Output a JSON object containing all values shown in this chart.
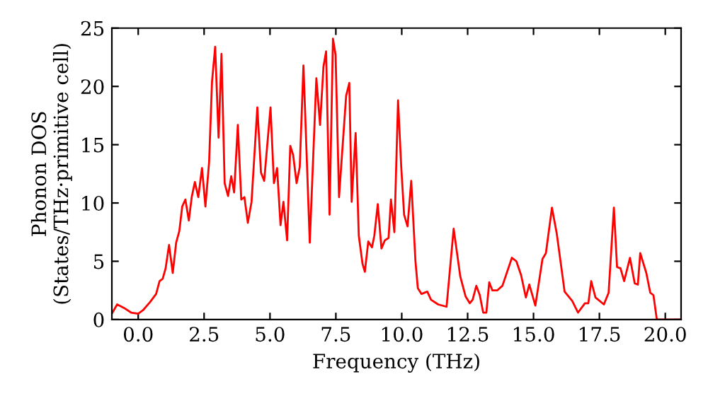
{
  "chart_data": {
    "type": "line",
    "xlabel": "Frequency (THz)",
    "ylabel": "Phonon DOS\n(States/THz·primitive cell)",
    "xlim": [
      -1.0,
      20.6
    ],
    "ylim": [
      0,
      25
    ],
    "xticks": [
      {
        "value": 0,
        "label": "0.0"
      },
      {
        "value": 2.5,
        "label": "2.5"
      },
      {
        "value": 5,
        "label": "5.0"
      },
      {
        "value": 7.5,
        "label": "7.5"
      },
      {
        "value": 10,
        "label": "10.0"
      },
      {
        "value": 12.5,
        "label": "12.5"
      },
      {
        "value": 15,
        "label": "15.0"
      },
      {
        "value": 17.5,
        "label": "17.5"
      },
      {
        "value": 20,
        "label": "20.0"
      }
    ],
    "yticks": [
      0,
      5,
      10,
      15,
      20,
      25
    ],
    "grid": false,
    "marker": "none",
    "line_style": "solid",
    "series": [
      {
        "color": "#ff0000",
        "x": [
          -1.0,
          -0.8,
          -0.54,
          -0.27,
          0.0,
          0.18,
          0.45,
          0.68,
          0.81,
          0.93,
          1.04,
          1.17,
          1.31,
          1.44,
          1.56,
          1.67,
          1.79,
          1.92,
          2.03,
          2.15,
          2.28,
          2.42,
          2.55,
          2.69,
          2.8,
          2.92,
          3.05,
          3.16,
          3.28,
          3.41,
          3.53,
          3.64,
          3.78,
          3.91,
          4.03,
          4.16,
          4.3,
          4.52,
          4.66,
          4.78,
          5.02,
          5.15,
          5.27,
          5.4,
          5.51,
          5.65,
          5.77,
          5.88,
          6.01,
          6.13,
          6.27,
          6.51,
          6.76,
          6.9,
          7.03,
          7.13,
          7.26,
          7.39,
          7.49,
          7.62,
          7.89,
          8.01,
          8.1,
          8.25,
          8.37,
          8.51,
          8.6,
          8.73,
          8.87,
          8.96,
          9.09,
          9.23,
          9.36,
          9.5,
          9.59,
          9.72,
          9.86,
          9.98,
          10.09,
          10.22,
          10.36,
          10.52,
          10.61,
          10.75,
          10.97,
          11.11,
          11.38,
          11.7,
          11.97,
          12.22,
          12.42,
          12.58,
          12.69,
          12.83,
          12.96,
          13.09,
          13.21,
          13.32,
          13.44,
          13.62,
          13.82,
          14.18,
          14.35,
          14.53,
          14.71,
          14.84,
          15.07,
          15.34,
          15.47,
          15.7,
          15.88,
          16.18,
          16.47,
          16.69,
          16.95,
          17.08,
          17.19,
          17.35,
          17.67,
          17.85,
          18.05,
          18.17,
          18.3,
          18.44,
          18.66,
          18.84,
          18.96,
          19.05,
          19.28,
          19.43,
          19.55,
          19.68,
          20.6
        ],
        "values": [
          0.5,
          1.3,
          1.0,
          0.6,
          0.5,
          0.8,
          1.5,
          2.2,
          3.3,
          3.5,
          4.4,
          6.4,
          4.0,
          6.6,
          7.6,
          9.7,
          10.3,
          8.5,
          10.5,
          11.8,
          10.5,
          13.0,
          9.7,
          13.5,
          20.4,
          23.4,
          15.6,
          22.8,
          11.7,
          10.6,
          12.3,
          10.9,
          16.7,
          10.3,
          10.5,
          8.3,
          10.1,
          18.2,
          12.6,
          11.9,
          18.2,
          11.7,
          13.0,
          8.1,
          10.1,
          6.8,
          14.9,
          14.1,
          11.7,
          13.1,
          21.8,
          6.6,
          20.7,
          16.7,
          21.7,
          23.0,
          9.0,
          24.1,
          22.7,
          10.5,
          19.2,
          20.3,
          10.1,
          16.0,
          7.2,
          4.8,
          4.1,
          6.7,
          6.2,
          7.2,
          9.9,
          6.1,
          6.8,
          7.0,
          10.3,
          7.5,
          18.8,
          13.1,
          9.0,
          8.0,
          11.9,
          5.0,
          2.7,
          2.2,
          2.4,
          1.7,
          1.3,
          1.1,
          7.8,
          3.7,
          2.0,
          1.4,
          1.7,
          2.9,
          2.1,
          0.6,
          0.6,
          3.2,
          2.5,
          2.5,
          2.9,
          5.3,
          5.0,
          3.8,
          1.9,
          3.0,
          1.2,
          5.2,
          5.7,
          9.6,
          7.4,
          2.4,
          1.6,
          0.6,
          1.4,
          1.4,
          3.3,
          1.9,
          1.3,
          2.3,
          9.6,
          4.5,
          4.4,
          3.3,
          5.3,
          3.1,
          3.0,
          5.7,
          4.0,
          2.3,
          2.1,
          0.0,
          0.0
        ]
      }
    ]
  }
}
